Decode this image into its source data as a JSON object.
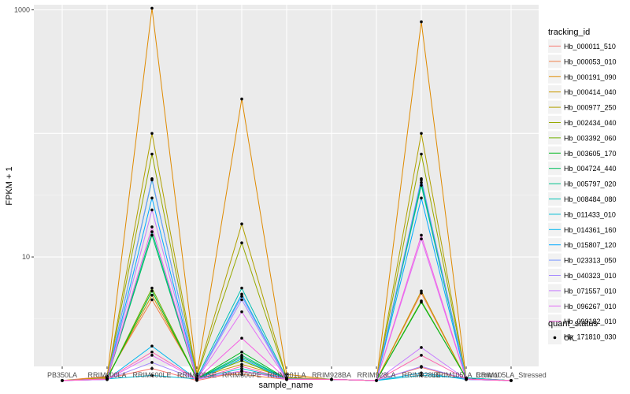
{
  "chart_data": {
    "type": "line",
    "xlabel": "sample_name",
    "ylabel": "FPKM + 1",
    "y_scale": "log10",
    "ylim": [
      1.3,
      1100
    ],
    "y_ticks": [
      10,
      1000
    ],
    "y_tick_labels": [
      "10",
      "1000"
    ],
    "grid": true,
    "legend_placement": "right",
    "categories": [
      "PB350LA",
      "RRIM600LA",
      "RRIM600LE",
      "RRIM600SE",
      "RRIM600PE",
      "RRIM901LA",
      "RRIM928BA",
      "RRIM928LA",
      "RRIM928LE",
      "RRIM105LA_Control",
      "RRIM105LA_Stressed"
    ],
    "legend": {
      "title": "tracking_id",
      "quant_title": "quant_status",
      "quant_entries": [
        "OK"
      ]
    },
    "series": [
      {
        "name": "Hb_000011_510",
        "color": "#F8766D",
        "values": [
          1,
          1.04,
          1.25,
          1,
          1.18,
          1.06,
          1.02,
          1,
          1.28,
          1.02,
          1
        ]
      },
      {
        "name": "Hb_000053_010",
        "color": "#EF7F49",
        "values": [
          1,
          1.08,
          4.5,
          1.08,
          1.12,
          1.02,
          1.02,
          1,
          5.1,
          1.03,
          1
        ]
      },
      {
        "name": "Hb_000191_090",
        "color": "#DF8A00",
        "values": [
          1,
          1.06,
          1030,
          1.12,
          190,
          1.12,
          1.02,
          1,
          800,
          1.04,
          1
        ]
      },
      {
        "name": "Hb_000414_040",
        "color": "#C99800",
        "values": [
          1,
          1.05,
          4.9,
          1.06,
          1.35,
          1.06,
          1.02,
          1,
          5.3,
          1.03,
          1
        ]
      },
      {
        "name": "Hb_000977_250",
        "color": "#B1A000",
        "values": [
          1,
          1.04,
          100,
          1.1,
          18.5,
          1.05,
          1.02,
          1,
          100,
          1.04,
          1
        ]
      },
      {
        "name": "Hb_002434_040",
        "color": "#96A900",
        "values": [
          1,
          1.04,
          68,
          1.08,
          13,
          1.04,
          1.02,
          1,
          68,
          1.05,
          1
        ]
      },
      {
        "name": "Hb_003392_060",
        "color": "#70B000",
        "values": [
          1,
          1.03,
          5.6,
          1.04,
          1.45,
          1.03,
          1.02,
          1,
          4.4,
          1.04,
          1
        ]
      },
      {
        "name": "Hb_003605_170",
        "color": "#00B81F",
        "values": [
          1,
          1.03,
          5.3,
          1.03,
          1.7,
          1.03,
          1.02,
          1,
          4.3,
          1.05,
          1
        ]
      },
      {
        "name": "Hb_004724_440",
        "color": "#00BD5C",
        "values": [
          1,
          1.03,
          15,
          1.03,
          1.55,
          1.03,
          1.02,
          1,
          40,
          1.04,
          1
        ]
      },
      {
        "name": "Hb_005797_020",
        "color": "#00C08B",
        "values": [
          1,
          1.03,
          16,
          1.03,
          1.6,
          1.03,
          1.02,
          1,
          38,
          1.03,
          1
        ]
      },
      {
        "name": "Hb_008484_080",
        "color": "#00C0B2",
        "values": [
          1,
          1.03,
          42,
          1.05,
          5.6,
          1.04,
          1.02,
          1,
          42,
          1.04,
          1
        ]
      },
      {
        "name": "Hb_011433_010",
        "color": "#00BCD4",
        "values": [
          1,
          1.03,
          1.1,
          1.03,
          1.25,
          1.03,
          1.02,
          1,
          1.1,
          1.05,
          1
        ]
      },
      {
        "name": "Hb_014361_160",
        "color": "#00B5EE",
        "values": [
          1,
          1.02,
          1.9,
          1.02,
          5.0,
          1.02,
          1.02,
          1,
          1.15,
          1.02,
          1
        ]
      },
      {
        "name": "Hb_015807_120",
        "color": "#00A9FF",
        "values": [
          1,
          1.02,
          30,
          1.02,
          1.5,
          1.02,
          1.02,
          1,
          30,
          1.02,
          1
        ]
      },
      {
        "name": "Hb_023313_050",
        "color": "#7997FF",
        "values": [
          1,
          1.03,
          43,
          1.03,
          4.8,
          1.03,
          1.02,
          1,
          43,
          1.03,
          1
        ]
      },
      {
        "name": "Hb_040323_010",
        "color": "#A58AFF",
        "values": [
          1,
          1.02,
          1.4,
          1.02,
          4.5,
          1.02,
          1.02,
          1,
          1.3,
          1.03,
          1
        ]
      },
      {
        "name": "Hb_071557_010",
        "color": "#C77CFF",
        "values": [
          1,
          1.02,
          24,
          1.02,
          1.2,
          1.02,
          1.02,
          1,
          1.85,
          1.02,
          1
        ]
      },
      {
        "name": "Hb_096267_010",
        "color": "#E36EF6",
        "values": [
          1,
          1.02,
          1.6,
          1.02,
          3.6,
          1.02,
          1.02,
          1,
          14,
          1.02,
          1
        ]
      },
      {
        "name": "Hb_099182_010",
        "color": "#F564E3",
        "values": [
          1,
          1.03,
          17.5,
          1.03,
          2.2,
          1.03,
          1.02,
          1,
          15,
          1.03,
          1
        ]
      },
      {
        "name": "Hb_171810_030",
        "color": "#FF64B0",
        "values": [
          1,
          1.03,
          1.7,
          1.03,
          1.3,
          1.03,
          1.02,
          1,
          1.6,
          1.03,
          1
        ]
      }
    ]
  }
}
